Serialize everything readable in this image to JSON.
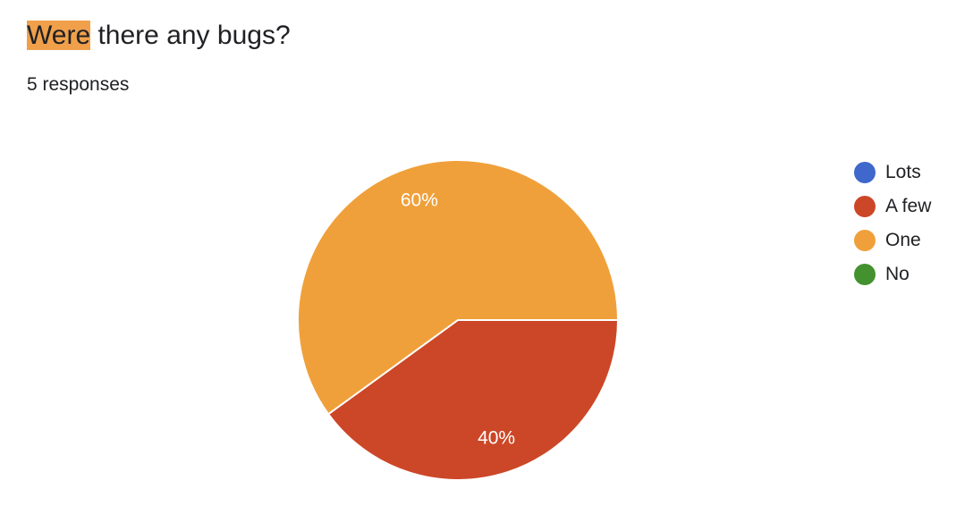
{
  "question": {
    "title_highlight": "Were",
    "title_rest": " there any bugs?",
    "highlight_color": "#f0a04b"
  },
  "responses": {
    "count_text": "5 responses"
  },
  "chart_data": {
    "type": "pie",
    "title": "",
    "categories": [
      "Lots",
      "A few",
      "One",
      "No"
    ],
    "values": [
      0,
      40,
      60,
      0
    ],
    "value_unit": "%",
    "slice_labels": [
      "",
      "",
      "60%",
      ""
    ],
    "colors": [
      "#3f67cc",
      "#cc4727",
      "#f0a03a",
      "#43922f"
    ],
    "legend_placement": "right"
  }
}
